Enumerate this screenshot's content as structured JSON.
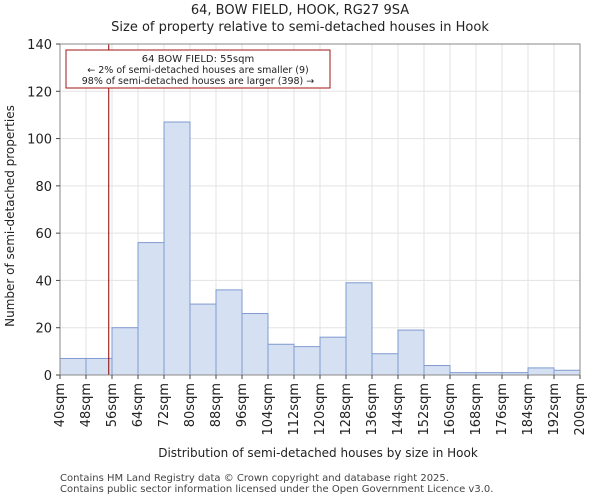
{
  "chart_data": {
    "type": "bar",
    "title": "64, BOW FIELD, HOOK, RG27 9SA",
    "subtitle": "Size of property relative to semi-detached houses in Hook",
    "xlabel": "Distribution of semi-detached houses by size in Hook",
    "ylabel": "Number of semi-detached properties",
    "categories": [
      "40sqm",
      "48sqm",
      "56sqm",
      "64sqm",
      "72sqm",
      "80sqm",
      "88sqm",
      "96sqm",
      "104sqm",
      "112sqm",
      "120sqm",
      "128sqm",
      "136sqm",
      "144sqm",
      "152sqm",
      "160sqm",
      "168sqm",
      "176sqm",
      "184sqm",
      "192sqm"
    ],
    "tick_labels": [
      "40sqm",
      "48sqm",
      "56sqm",
      "64sqm",
      "72sqm",
      "80sqm",
      "88sqm",
      "96sqm",
      "104sqm",
      "112sqm",
      "120sqm",
      "128sqm",
      "136sqm",
      "144sqm",
      "152sqm",
      "160sqm",
      "168sqm",
      "176sqm",
      "184sqm",
      "192sqm",
      "200sqm"
    ],
    "bin_start": 40,
    "bin_width": 8,
    "values": [
      7,
      7,
      20,
      56,
      107,
      30,
      36,
      26,
      13,
      12,
      16,
      39,
      9,
      19,
      4,
      1,
      1,
      1,
      3,
      2
    ],
    "ylim": [
      0,
      140
    ],
    "yticks": [
      0,
      20,
      40,
      60,
      80,
      100,
      120,
      140
    ],
    "xlim": [
      40,
      200
    ],
    "marker": {
      "x": 55,
      "color": "#8b0000",
      "annotation": [
        "64 BOW FIELD: 55sqm",
        "← 2% of semi-detached houses are smaller (9)",
        "98% of semi-detached houses are larger (398) →"
      ]
    },
    "bar_fill": "#d6e0f3",
    "bar_stroke": "#7f9bd0",
    "grid": true
  },
  "footer": {
    "line1": "Contains HM Land Registry data © Crown copyright and database right 2025.",
    "line2": "Contains public sector information licensed under the Open Government Licence v3.0."
  }
}
